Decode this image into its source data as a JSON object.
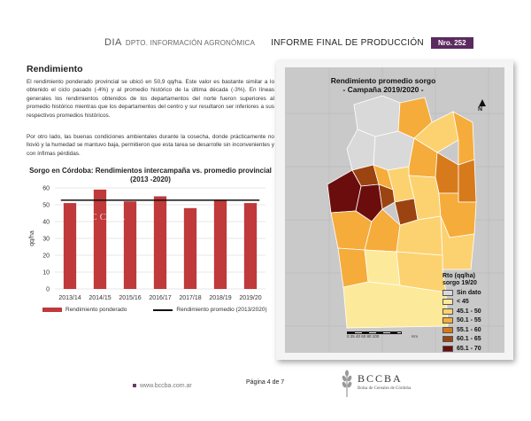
{
  "header": {
    "dia": "DIA",
    "dept": "DPTO. INFORMACIÓN AGRONÓMICA",
    "report": "INFORME FINAL DE PRODUCCIÓN",
    "nro": "Nro. 252"
  },
  "section": {
    "title": "Rendimiento",
    "p1": "El rendimiento ponderado provincial se ubicó en 50,9 qq/ha. Este valor es bastante similar a lo obtenido el ciclo pasado (-4%) y al promedio histórico de la última década (-3%). En líneas generales los rendimientos obtenidos de los departamentos del norte fueron superiores al promedio histórico mientras que los departamentos del centro y sur resultaron ser inferiores a sus respectivos promedios históricos.",
    "p2": "Por otro lado, las buenas condiciones ambientales durante la cosecha, donde prácticamente no llovió y la humedad se mantuvo baja, permitieron que esta tarea se desarrolle sin inconvenientes y con ínfimas pérdidas."
  },
  "chart_data": {
    "type": "bar",
    "title": "Sorgo en Córdoba: Rendimientos intercampaña vs. promedio provincial (2013 -2020)",
    "categories": [
      "2013/14",
      "2014/15",
      "2015/16",
      "2016/17",
      "2017/18",
      "2018/19",
      "2019/20"
    ],
    "series": [
      {
        "name": "Rendimiento ponderado",
        "values": [
          51,
          59,
          52,
          55,
          48,
          53,
          51
        ],
        "color": "#c0393b"
      },
      {
        "name": "Rendimiento promedio (2013/2020)",
        "values": [
          52.7,
          52.7,
          52.7,
          52.7,
          52.7,
          52.7,
          52.7
        ],
        "color": "#111111"
      }
    ],
    "ylabel": "qq/ha",
    "yticks": [
      "0",
      "10",
      "20",
      "30",
      "40",
      "50",
      "60"
    ],
    "ylim": [
      0,
      60
    ],
    "grid": true,
    "legend": "bottom"
  },
  "map": {
    "title_line1": "Rendimiento promedio sorgo",
    "title_line2": "- Campaña 2019/2020 -",
    "north": "N",
    "scale_labels": "0  25  40  60  80  100",
    "scale_unit": "Km",
    "legend_title_1": "Rto (qq/ha)",
    "legend_title_2": "sorgo 19/20",
    "legend": [
      {
        "label": "Sin dato",
        "color": "#d9d9d9"
      },
      {
        "label": "< 45",
        "color": "#fde99a"
      },
      {
        "label": "45.1 - 50",
        "color": "#fcd270"
      },
      {
        "label": "50.1 - 55",
        "color": "#f5ac3b"
      },
      {
        "label": "55.1 - 60",
        "color": "#d77a1c"
      },
      {
        "label": "60.1 - 65",
        "color": "#9c4312"
      },
      {
        "label": "65.1 - 70",
        "color": "#6b0d0d"
      }
    ]
  },
  "footer": {
    "url": "www.bccba.com.ar",
    "page": "Página 4 de 7",
    "logo_name": "BCCBA",
    "logo_sub": "Bolsa de Cereales de Córdoba"
  },
  "watermark": "BCCBA"
}
